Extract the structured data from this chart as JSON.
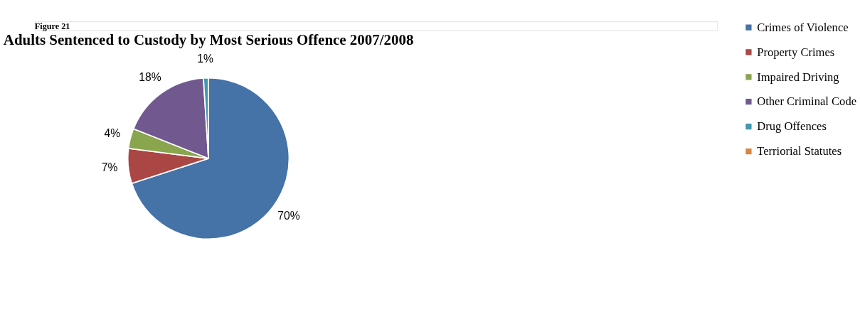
{
  "chart_data": {
    "type": "pie",
    "title": "Adults Sentenced to Custody by Most Serious Offence 2007/2008",
    "annotations": [
      "Figure 21"
    ],
    "categories": [
      "Crimes of Violence",
      "Property Crimes",
      "Impaired Driving",
      "Other Criminal Code",
      "Drug Offences",
      "Terriorial Statutes"
    ],
    "values": [
      70,
      7,
      4,
      18,
      1,
      0
    ],
    "colors": [
      "#4572a7",
      "#aa4643",
      "#89a54e",
      "#71588f",
      "#4198af",
      "#db843d"
    ],
    "value_labels": [
      "70%",
      "7%",
      "4%",
      "18%",
      "1%",
      null
    ],
    "legend": "right"
  }
}
